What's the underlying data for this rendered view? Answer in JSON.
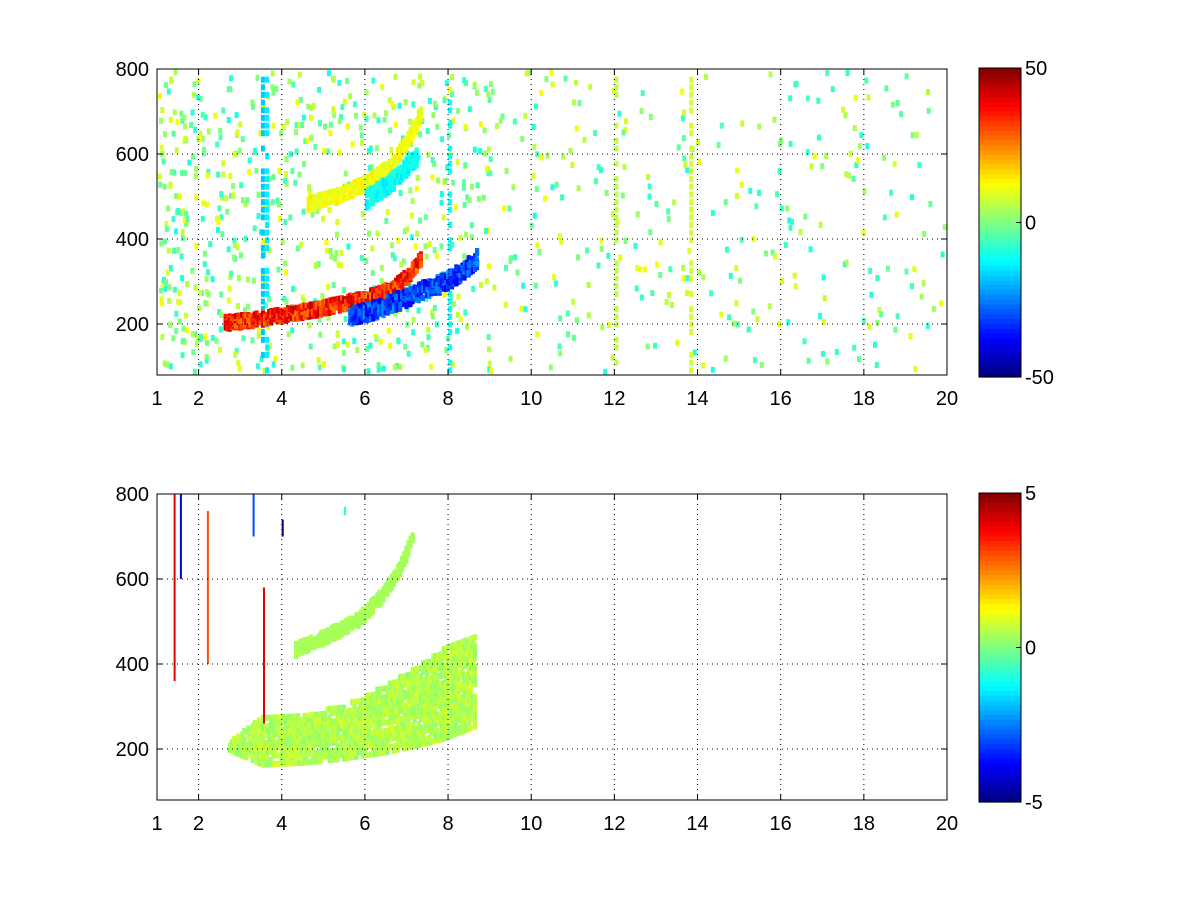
{
  "chart_data": [
    {
      "type": "heatmap",
      "title": "",
      "xlabel": "",
      "ylabel": "",
      "xlim": [
        1,
        20
      ],
      "ylim": [
        80,
        800
      ],
      "xticks": [
        1,
        2,
        4,
        6,
        8,
        10,
        12,
        14,
        16,
        18,
        20
      ],
      "xtick_labels": [
        "1",
        "2",
        "4",
        "6",
        "8",
        "10",
        "12",
        "14",
        "16",
        "18",
        "20"
      ],
      "yticks": [
        200,
        400,
        600,
        800
      ],
      "ytick_labels": [
        "200",
        "400",
        "600",
        "800"
      ],
      "grid": true,
      "colormap": "jet",
      "clim": [
        -50,
        50
      ],
      "colorbar_ticks": [
        -50,
        0,
        50
      ],
      "colorbar_tick_labels": [
        "-50",
        "0",
        "50"
      ],
      "features": [
        {
          "kind": "ridge-positive",
          "x": [
            2.6,
            3.2,
            4.0,
            5.0,
            6.0,
            6.6,
            7.0,
            7.3
          ],
          "y": [
            210,
            215,
            228,
            245,
            268,
            290,
            320,
            360
          ],
          "value": 45
        },
        {
          "kind": "ridge-negative",
          "x": [
            5.6,
            6.2,
            6.8,
            7.4,
            7.9,
            8.3,
            8.7
          ],
          "y": [
            225,
            240,
            262,
            288,
            305,
            330,
            365
          ],
          "value": -40
        },
        {
          "kind": "ridge-positive",
          "x": [
            4.6,
            5.4,
            6.0,
            6.6,
            7.0,
            7.3
          ],
          "y": [
            490,
            510,
            540,
            580,
            640,
            700
          ],
          "value": 15
        },
        {
          "kind": "ridge-negative",
          "x": [
            6.0,
            6.6,
            7.2
          ],
          "y": [
            500,
            540,
            600
          ],
          "value": -15
        }
      ],
      "noise": {
        "x_range": [
          1,
          20
        ],
        "value_range": [
          -10,
          12
        ]
      },
      "stripes": [
        {
          "x": 3.5,
          "value": -18
        },
        {
          "x": 3.6,
          "value": -14
        },
        {
          "x": 8.0,
          "value": -12
        },
        {
          "x": 13.8,
          "value": 8
        },
        {
          "x": 12.0,
          "value": 6
        }
      ]
    },
    {
      "type": "heatmap",
      "title": "",
      "xlabel": "",
      "ylabel": "",
      "xlim": [
        1,
        20
      ],
      "ylim": [
        80,
        800
      ],
      "xticks": [
        1,
        2,
        4,
        6,
        8,
        10,
        12,
        14,
        16,
        18,
        20
      ],
      "xtick_labels": [
        "1",
        "2",
        "4",
        "6",
        "8",
        "10",
        "12",
        "14",
        "16",
        "18",
        "20"
      ],
      "yticks": [
        200,
        400,
        600,
        800
      ],
      "ytick_labels": [
        "200",
        "400",
        "600",
        "800"
      ],
      "grid": true,
      "colormap": "jet",
      "clim": [
        -5,
        5
      ],
      "colorbar_ticks": [
        -5,
        0,
        5
      ],
      "colorbar_tick_labels": [
        "-5",
        "0",
        "5"
      ],
      "features": [
        {
          "kind": "band",
          "x": [
            2.7,
            3.5,
            4.5,
            5.5,
            6.5,
            7.2,
            7.8,
            8.6
          ],
          "y_low": [
            205,
            170,
            175,
            185,
            200,
            215,
            230,
            260
          ],
          "y_high": [
            225,
            285,
            290,
            310,
            360,
            400,
            440,
            470
          ],
          "value": 0.5
        },
        {
          "kind": "ridge",
          "x": [
            4.3,
            5.0,
            5.8,
            6.4,
            6.8,
            7.1
          ],
          "y": [
            440,
            470,
            510,
            570,
            630,
            700
          ],
          "value": 0.5
        }
      ],
      "spikes": [
        {
          "x": 1.4,
          "y_range": [
            360,
            800
          ],
          "value": 4
        },
        {
          "x": 1.55,
          "y_range": [
            600,
            800
          ],
          "value": -4
        },
        {
          "x": 2.2,
          "y_range": [
            400,
            760
          ],
          "value": 3
        },
        {
          "x": 3.3,
          "y_range": [
            700,
            800
          ],
          "value": -3
        },
        {
          "x": 3.55,
          "y_range": [
            260,
            580
          ],
          "value": 4
        },
        {
          "x": 4.0,
          "y_range": [
            700,
            740
          ],
          "value": -5
        },
        {
          "x": 5.5,
          "y_range": [
            750,
            770
          ],
          "value": -1
        }
      ]
    }
  ]
}
